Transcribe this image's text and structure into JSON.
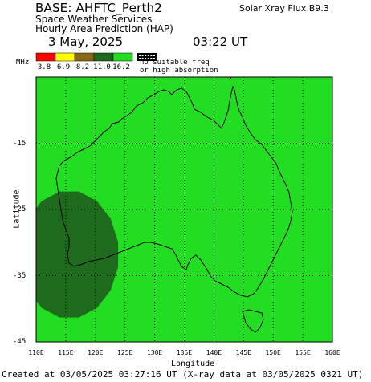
{
  "header": {
    "base": "BASE: AHFTC_Perth2",
    "solar_flux": "Solar Xray Flux B9.3",
    "line1": "Space Weather Services",
    "line2": "Hourly Area Prediction (HAP)",
    "date": "3 May, 2025",
    "time": "03:22 UT"
  },
  "legend": {
    "unit_label": "MHz",
    "values": [
      "3.8",
      "6.9",
      "8.2",
      "11.0",
      "16.2"
    ],
    "colors": [
      "#ff0000",
      "#ffff00",
      "#8b6914",
      "#1e6b1e",
      "#22dd22"
    ],
    "no_freq_text": "no suitable freq or high absorption"
  },
  "map": {
    "background_color": "#22dd22",
    "region_color": "#1e6b1e",
    "lon_min": 110,
    "lon_max": 160,
    "lat_min": -45,
    "lat_max": -5,
    "x_ticks": [
      "110E",
      "115E",
      "120E",
      "125E",
      "130E",
      "135E",
      "140E",
      "145E",
      "150E",
      "155E",
      "160E"
    ],
    "y_ticks": [
      "-15",
      "-25",
      "-35",
      "-45"
    ],
    "x_axis_title": "Longitude",
    "y_axis_title": "Latitude",
    "region_center": {
      "lon": 115.6,
      "lat": -31.8
    }
  },
  "footer": "Created at 03/05/2025 03:27:16 UT (X-ray data at 03/05/2025 0321 UT)"
}
